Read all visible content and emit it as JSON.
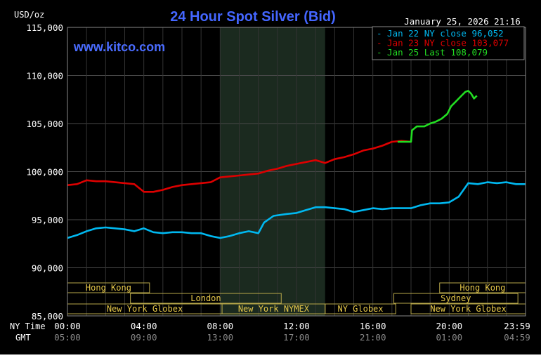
{
  "chart_data": {
    "type": "line",
    "title": "24 Hour Spot Silver (Bid)",
    "unit_label": "USD/oz",
    "watermark": "www.kitco.com",
    "timestamp": "January 25, 2026 21:16",
    "ylim": [
      85000,
      115000
    ],
    "y_ticks": [
      85000,
      90000,
      95000,
      100000,
      105000,
      110000,
      115000
    ],
    "y_tick_labels": [
      "85,000",
      "90,000",
      "95,000",
      "100,000",
      "105,000",
      "110,000",
      "115,000"
    ],
    "xlim": [
      0,
      24
    ],
    "x_ticks": [
      0,
      4,
      8,
      12,
      16,
      20,
      24
    ],
    "row_labels": [
      "NY Time",
      "GMT"
    ],
    "x_tick_labels_ny": [
      "00:00",
      "04:00",
      "08:00",
      "12:00",
      "16:00",
      "20:00",
      "23:59"
    ],
    "x_tick_labels_gmt": [
      "05:00",
      "09:00",
      "13:00",
      "17:00",
      "21:00",
      "01:00",
      "04:59"
    ],
    "shaded_period": [
      8,
      13.5
    ],
    "legend": [
      {
        "text": "Jan 22 NY close 96,052",
        "color": "#00b8f0"
      },
      {
        "text": "Jan 23 NY close 103,077",
        "color": "#dd0000"
      },
      {
        "text": "Jan 25 Last 108,079",
        "color": "#22dd22"
      }
    ],
    "legend_position": "top-right",
    "sessions": [
      {
        "label": "Hong Kong",
        "start": 0,
        "end": 4.3,
        "row": 0
      },
      {
        "label": "London",
        "start": 3.3,
        "end": 11.2,
        "row": 1
      },
      {
        "label": "New York Globex",
        "start": 0,
        "end": 8.1,
        "row": 2
      },
      {
        "label": "New York NYMEX",
        "start": 8.1,
        "end": 13.5,
        "row": 2
      },
      {
        "label": "NY Globex",
        "start": 13.5,
        "end": 17.2,
        "row": 2
      },
      {
        "label": "Hong Kong",
        "start": 19.5,
        "end": 24,
        "row": 0
      },
      {
        "label": "Sydney",
        "start": 17.1,
        "end": 23.6,
        "row": 1
      },
      {
        "label": "New York Globex",
        "start": 18,
        "end": 24,
        "row": 2
      }
    ],
    "series": [
      {
        "name": "Jan 22",
        "color": "#00b8f0",
        "x": [
          0,
          0.5,
          1,
          1.5,
          2,
          2.5,
          3,
          3.5,
          4,
          4.5,
          5,
          5.5,
          6,
          6.5,
          7,
          7.5,
          8,
          8.5,
          9,
          9.5,
          10,
          10.3,
          10.8,
          11.5,
          12,
          12.5,
          13,
          13.5,
          14,
          14.5,
          15,
          15.5,
          16,
          16.5,
          17,
          17.5,
          18,
          18.5,
          19,
          19.5,
          20,
          20.5,
          21,
          21.5,
          22,
          22.5,
          23,
          23.5,
          24
        ],
        "y": [
          93100,
          93400,
          93800,
          94100,
          94200,
          94100,
          94000,
          93800,
          94100,
          93700,
          93600,
          93700,
          93700,
          93600,
          93600,
          93300,
          93100,
          93300,
          93600,
          93800,
          93600,
          94700,
          95400,
          95600,
          95700,
          96000,
          96300,
          96300,
          96200,
          96100,
          95800,
          96000,
          96200,
          96100,
          96200,
          96200,
          96200,
          96500,
          96700,
          96700,
          96800,
          97400,
          98800,
          98700,
          98900,
          98800,
          98900,
          98700,
          98700
        ]
      },
      {
        "name": "Jan 23",
        "color": "#dd0000",
        "x": [
          0,
          0.5,
          1,
          1.5,
          2,
          2.5,
          3,
          3.5,
          4,
          4.5,
          5,
          5.5,
          6,
          6.5,
          7,
          7.5,
          8,
          8.5,
          9,
          9.5,
          10,
          10.5,
          11,
          11.5,
          12,
          12.5,
          13,
          13.5,
          14,
          14.5,
          15,
          15.5,
          16,
          16.5,
          17,
          17.5,
          18
        ],
        "y": [
          98600,
          98700,
          99100,
          99000,
          99000,
          98900,
          98800,
          98700,
          97900,
          97900,
          98100,
          98400,
          98600,
          98700,
          98800,
          98900,
          99400,
          99500,
          99600,
          99700,
          99800,
          100100,
          100300,
          100600,
          100800,
          101000,
          101200,
          100900,
          101300,
          101500,
          101800,
          102200,
          102400,
          102700,
          103100,
          103200,
          103100
        ]
      },
      {
        "name": "Jan 25",
        "color": "#22dd22",
        "x": [
          17.3,
          17.6,
          18,
          18.05,
          18.3,
          18.7,
          19,
          19.3,
          19.6,
          19.9,
          20.1,
          20.3,
          20.5,
          20.7,
          20.85,
          21,
          21.15,
          21.3,
          21.45
        ],
        "y": [
          103100,
          103100,
          103100,
          104300,
          104700,
          104700,
          105000,
          105200,
          105500,
          106000,
          106800,
          107200,
          107600,
          108000,
          108300,
          108400,
          108100,
          107600,
          107900
        ]
      }
    ]
  }
}
